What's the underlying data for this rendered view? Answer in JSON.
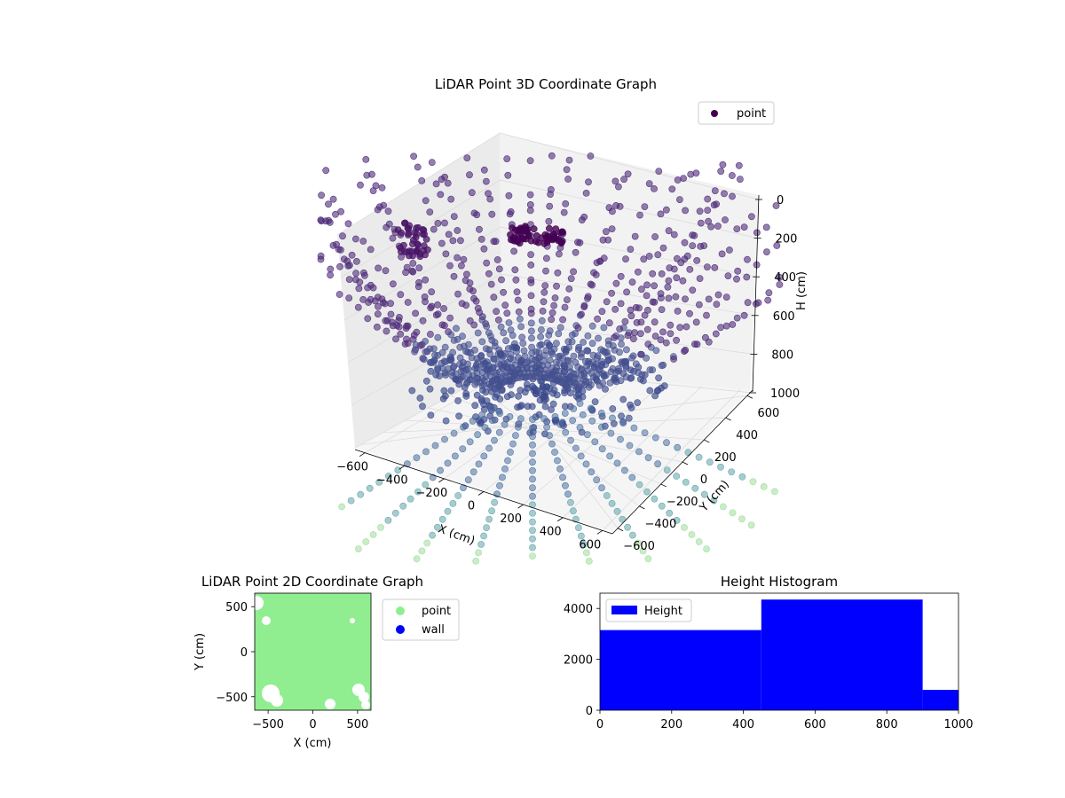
{
  "figure": {
    "title_3d": "LiDAR Point 3D Coordinate Graph",
    "title_2d": "LiDAR Point 2D Coordinate Graph",
    "title_hist": "Height Histogram"
  },
  "chart_data": [
    {
      "type": "scatter",
      "title": "LiDAR Point 3D Coordinate Graph",
      "xlabel": "X (cm)",
      "ylabel": "Y (cm)",
      "zlabel": "H (cm)",
      "xlim": [
        -650,
        650
      ],
      "ylim": [
        -650,
        650
      ],
      "zlim": [
        0,
        1000
      ],
      "z_inverted": true,
      "x_ticks": [
        "−600",
        "−400",
        "−200",
        "0",
        "200",
        "400",
        "600"
      ],
      "y_ticks": [
        "−600",
        "−400",
        "−200",
        "0",
        "200",
        "400",
        "600"
      ],
      "z_ticks": [
        "0",
        "200",
        "400",
        "600",
        "800",
        "1000"
      ],
      "legend": [
        {
          "name": "point",
          "color": "#440154"
        }
      ],
      "legend_position": "upper right",
      "colormap": "viridis",
      "grid": true
    },
    {
      "type": "scatter",
      "title": "LiDAR Point 2D Coordinate Graph",
      "xlabel": "X (cm)",
      "ylabel": "Y (cm)",
      "xlim": [
        -650,
        650
      ],
      "ylim": [
        -650,
        650
      ],
      "x_ticks": [
        "−500",
        "0",
        "500"
      ],
      "y_ticks": [
        "500",
        "0",
        "−500"
      ],
      "legend": [
        {
          "name": "point",
          "color": "#90ee90"
        },
        {
          "name": "wall",
          "color": "#0000ff"
        }
      ],
      "legend_position": "outside right"
    },
    {
      "type": "bar",
      "title": "Height Histogram",
      "bins": [
        [
          0,
          450
        ],
        [
          450,
          900
        ],
        [
          900,
          1000
        ]
      ],
      "values": [
        3150,
        4350,
        800
      ],
      "xlim": [
        0,
        1000
      ],
      "ylim": [
        0,
        4600
      ],
      "x_ticks": [
        "0",
        "200",
        "400",
        "600",
        "800",
        "1000"
      ],
      "y_ticks": [
        "0",
        "2000",
        "4000"
      ],
      "series": [
        {
          "name": "Height",
          "color": "#0000ff"
        }
      ],
      "legend_position": "upper left"
    }
  ]
}
